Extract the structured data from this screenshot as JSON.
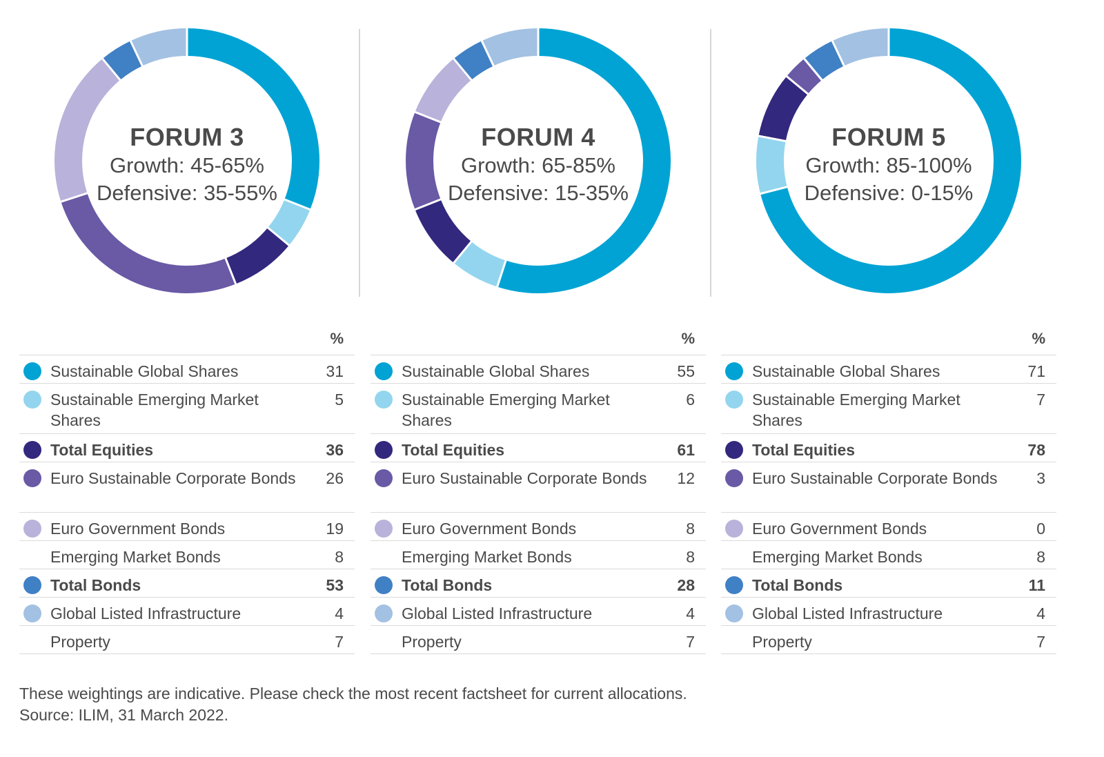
{
  "colors": {
    "sustainable_global_shares": "#00a3d4",
    "sustainable_emerging_market_shares": "#93d5ee",
    "total_equities": "#32287e",
    "euro_sustainable_corporate_bonds": "#6a59a5",
    "euro_government_bonds": "#b9b2da",
    "total_bonds": "#4080c4",
    "global_listed_infrastructure": "#a3c1e2"
  },
  "footer": {
    "line1": "These weightings are indicative. Please check the most recent factsheet for current allocations.",
    "line2": "Source: ILIM, 31 March 2022."
  },
  "chart_data": [
    {
      "type": "pie",
      "title": "FORUM 3",
      "subtitle_growth": "Growth: 45-65%",
      "subtitle_defensive": "Defensive: 35-55%",
      "pct_header": "%",
      "slices": [
        {
          "label": "Sustainable Global Shares",
          "value": 31,
          "color": "#00a3d4"
        },
        {
          "label": "Sustainable Emerging Market Shares",
          "value": 5,
          "color": "#93d5ee"
        },
        {
          "label": "Emerging Market Bonds",
          "value": 8,
          "color": "#32287e"
        },
        {
          "label": "Euro Sustainable Corporate Bonds",
          "value": 26,
          "color": "#6a59a5"
        },
        {
          "label": "Euro Government Bonds",
          "value": 19,
          "color": "#b9b2da"
        },
        {
          "label": "Global Listed Infrastructure",
          "value": 4,
          "color": "#4080c4"
        },
        {
          "label": "Property",
          "value": 7,
          "color": "#a3c1e2"
        }
      ],
      "table": [
        {
          "label": "Sustainable Global Shares",
          "value": "31",
          "color": "#00a3d4",
          "bold": false
        },
        {
          "label": "Sustainable Emerging Market Shares",
          "value": "5",
          "color": "#93d5ee",
          "bold": false
        },
        {
          "label": "Total Equities",
          "value": "36",
          "color": "#32287e",
          "bold": true
        },
        {
          "label": "Euro Sustainable Corporate Bonds",
          "value": "26",
          "color": "#6a59a5",
          "bold": false
        },
        {
          "label": "Euro Government Bonds",
          "value": "19",
          "color": "#b9b2da",
          "bold": false
        },
        {
          "label": "Emerging Market Bonds",
          "value": "8",
          "color": "",
          "bold": false
        },
        {
          "label": "Total Bonds",
          "value": "53",
          "color": "#4080c4",
          "bold": true
        },
        {
          "label": "Global Listed Infrastructure",
          "value": "4",
          "color": "#a3c1e2",
          "bold": false
        },
        {
          "label": "Property",
          "value": "7",
          "color": "",
          "bold": false
        }
      ]
    },
    {
      "type": "pie",
      "title": "FORUM 4",
      "subtitle_growth": "Growth: 65-85%",
      "subtitle_defensive": "Defensive: 15-35%",
      "pct_header": "%",
      "slices": [
        {
          "label": "Sustainable Global Shares",
          "value": 55,
          "color": "#00a3d4"
        },
        {
          "label": "Sustainable Emerging Market Shares",
          "value": 6,
          "color": "#93d5ee"
        },
        {
          "label": "Emerging Market Bonds",
          "value": 8,
          "color": "#32287e"
        },
        {
          "label": "Euro Sustainable Corporate Bonds",
          "value": 12,
          "color": "#6a59a5"
        },
        {
          "label": "Euro Government Bonds",
          "value": 8,
          "color": "#b9b2da"
        },
        {
          "label": "Global Listed Infrastructure",
          "value": 4,
          "color": "#4080c4"
        },
        {
          "label": "Property",
          "value": 7,
          "color": "#a3c1e2"
        }
      ],
      "table": [
        {
          "label": "Sustainable Global Shares",
          "value": "55",
          "color": "#00a3d4",
          "bold": false
        },
        {
          "label": "Sustainable Emerging Market Shares",
          "value": "6",
          "color": "#93d5ee",
          "bold": false
        },
        {
          "label": "Total Equities",
          "value": "61",
          "color": "#32287e",
          "bold": true
        },
        {
          "label": "Euro Sustainable Corporate Bonds",
          "value": "12",
          "color": "#6a59a5",
          "bold": false
        },
        {
          "label": "Euro Government Bonds",
          "value": "8",
          "color": "#b9b2da",
          "bold": false
        },
        {
          "label": "Emerging Market Bonds",
          "value": "8",
          "color": "",
          "bold": false
        },
        {
          "label": "Total Bonds",
          "value": "28",
          "color": "#4080c4",
          "bold": true
        },
        {
          "label": "Global Listed Infrastructure",
          "value": "4",
          "color": "#a3c1e2",
          "bold": false
        },
        {
          "label": "Property",
          "value": "7",
          "color": "",
          "bold": false
        }
      ]
    },
    {
      "type": "pie",
      "title": "FORUM 5",
      "subtitle_growth": "Growth: 85-100%",
      "subtitle_defensive": "Defensive: 0-15%",
      "pct_header": "%",
      "slices": [
        {
          "label": "Sustainable Global Shares",
          "value": 71,
          "color": "#00a3d4"
        },
        {
          "label": "Sustainable Emerging Market Shares",
          "value": 7,
          "color": "#93d5ee"
        },
        {
          "label": "Emerging Market Bonds",
          "value": 8,
          "color": "#32287e"
        },
        {
          "label": "Euro Sustainable Corporate Bonds",
          "value": 3,
          "color": "#6a59a5"
        },
        {
          "label": "Euro Government Bonds",
          "value": 0,
          "color": "#b9b2da"
        },
        {
          "label": "Global Listed Infrastructure",
          "value": 4,
          "color": "#4080c4"
        },
        {
          "label": "Property",
          "value": 7,
          "color": "#a3c1e2"
        }
      ],
      "table": [
        {
          "label": "Sustainable Global Shares",
          "value": "71",
          "color": "#00a3d4",
          "bold": false
        },
        {
          "label": "Sustainable Emerging Market Shares",
          "value": "7",
          "color": "#93d5ee",
          "bold": false
        },
        {
          "label": "Total Equities",
          "value": "78",
          "color": "#32287e",
          "bold": true
        },
        {
          "label": "Euro Sustainable Corporate Bonds",
          "value": "3",
          "color": "#6a59a5",
          "bold": false
        },
        {
          "label": "Euro Government Bonds",
          "value": "0",
          "color": "#b9b2da",
          "bold": false
        },
        {
          "label": "Emerging Market Bonds",
          "value": "8",
          "color": "",
          "bold": false
        },
        {
          "label": "Total Bonds",
          "value": "11",
          "color": "#4080c4",
          "bold": true
        },
        {
          "label": "Global Listed Infrastructure",
          "value": "4",
          "color": "#a3c1e2",
          "bold": false
        },
        {
          "label": "Property",
          "value": "7",
          "color": "",
          "bold": false
        }
      ]
    }
  ]
}
